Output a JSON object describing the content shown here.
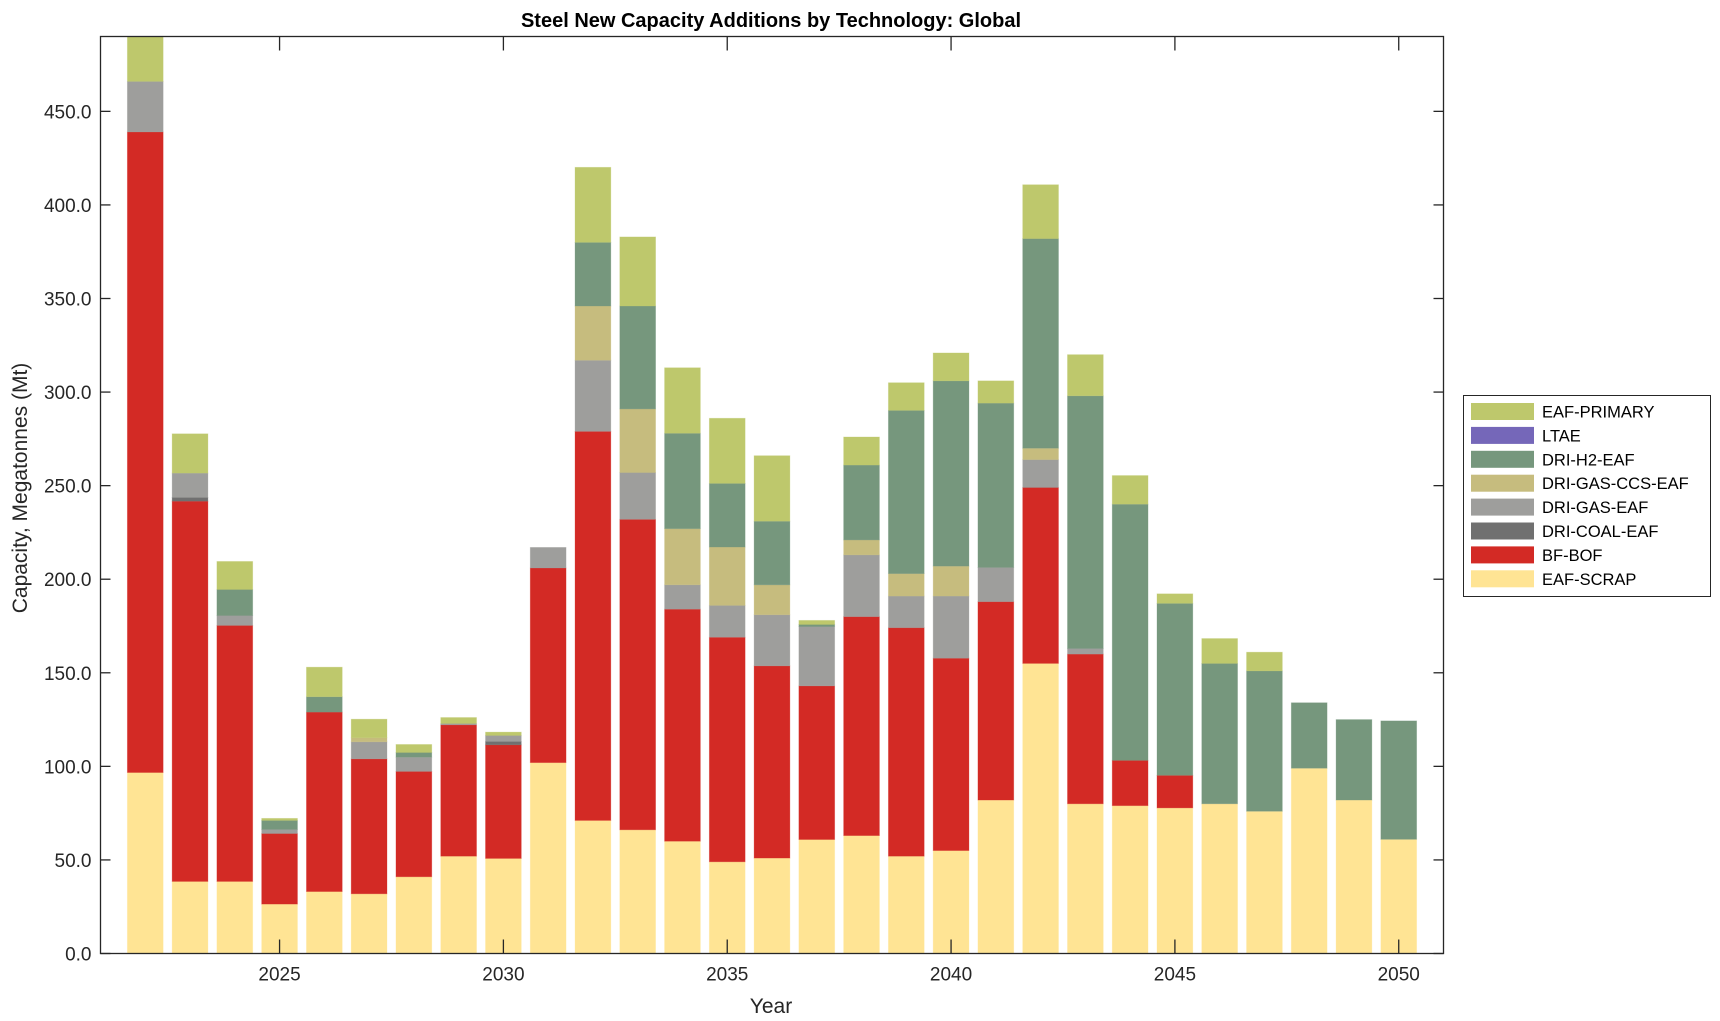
{
  "chart_data": {
    "type": "bar",
    "stacked": true,
    "title": "Steel New Capacity Additions by Technology: Global",
    "xlabel": "Year",
    "ylabel": "Capacity, Megatonnes (Mt)",
    "xlim": [
      2021,
      2051
    ],
    "ylim": [
      0,
      490
    ],
    "xticks": [
      2025,
      2030,
      2035,
      2040,
      2045,
      2050
    ],
    "xtick_labels": [
      "2025",
      "2030",
      "2035",
      "2040",
      "2045",
      "2050"
    ],
    "yticks": [
      0,
      50,
      100,
      150,
      200,
      250,
      300,
      350,
      400,
      450
    ],
    "ytick_labels": [
      "0.0",
      "50.0",
      "100.0",
      "150.0",
      "200.0",
      "250.0",
      "300.0",
      "350.0",
      "400.0",
      "450.0"
    ],
    "grid": false,
    "legend_position": "right",
    "categories": [
      2022,
      2023,
      2024,
      2025,
      2026,
      2027,
      2028,
      2029,
      2030,
      2031,
      2032,
      2033,
      2034,
      2035,
      2036,
      2037,
      2038,
      2039,
      2040,
      2041,
      2042,
      2043,
      2044,
      2045,
      2046,
      2047,
      2048,
      2049,
      2050
    ],
    "series": [
      {
        "name": "EAF-SCRAP",
        "color": "#FFE494",
        "values": [
          96.7,
          38.5,
          38.5,
          26.4,
          33.1,
          31.9,
          41.0,
          52.0,
          50.8,
          102.0,
          71.1,
          66.1,
          60.0,
          49.0,
          51.0,
          60.9,
          63.0,
          52.0,
          55.0,
          82.0,
          155.0,
          80.0,
          79.0,
          77.8,
          80.0,
          76.0,
          99.0,
          82.0,
          61.0
        ]
      },
      {
        "name": "BF-BOF",
        "color": "#D32A25",
        "values": [
          342.3,
          203.2,
          136.8,
          37.7,
          95.9,
          72.1,
          56.3,
          70.2,
          60.7,
          104.0,
          207.9,
          165.9,
          124.0,
          120.0,
          102.7,
          82.1,
          117.0,
          122.1,
          102.8,
          106.0,
          94.0,
          80.0,
          24.2,
          17.4,
          0,
          0,
          0,
          0,
          0
        ]
      },
      {
        "name": "DRI-COAL-EAF",
        "color": "#707070",
        "values": [
          0,
          2.0,
          0,
          0,
          0,
          0,
          0,
          0,
          1.8,
          0,
          0,
          0,
          0,
          0,
          0,
          0,
          0,
          0,
          0,
          0,
          0,
          0,
          0,
          0,
          0,
          0,
          0,
          0,
          0
        ]
      },
      {
        "name": "DRI-GAS-EAF",
        "color": "#9E9E9C",
        "values": [
          27.0,
          13.0,
          5.3,
          2.2,
          0,
          9.1,
          7.6,
          0.7,
          3.2,
          11.0,
          38.0,
          25.0,
          13.0,
          17.0,
          27.3,
          31.7,
          33.0,
          16.9,
          33.2,
          18.3,
          14.9,
          3.0,
          0,
          0,
          0,
          0,
          0,
          0,
          0
        ]
      },
      {
        "name": "DRI-GAS-CCS-EAF",
        "color": "#C6BC7E",
        "values": [
          0,
          0,
          0,
          0,
          0,
          2.2,
          0,
          0,
          0,
          0,
          29.0,
          34.0,
          30.0,
          31.2,
          16.0,
          0,
          8.0,
          12.0,
          16.0,
          0,
          6.1,
          0,
          0,
          0,
          0,
          0,
          0,
          0,
          0
        ]
      },
      {
        "name": "DRI-H2-EAF",
        "color": "#76977D",
        "values": [
          0,
          0,
          13.9,
          4.8,
          8.2,
          0,
          2.5,
          0,
          0,
          0,
          34.0,
          55.0,
          51.0,
          34.0,
          34.0,
          1.1,
          40.0,
          87.2,
          99.0,
          87.8,
          112.0,
          135.0,
          136.9,
          91.9,
          75.0,
          75.0,
          35.0,
          43.0,
          63.3
        ]
      },
      {
        "name": "LTAE",
        "color": "#7567B9",
        "values": [
          0,
          0,
          0,
          0,
          0,
          0,
          0,
          0,
          0,
          0,
          0,
          0,
          0,
          0,
          0,
          0,
          0,
          0,
          0,
          0,
          0,
          0,
          0,
          0,
          0,
          0,
          0,
          0,
          0
        ]
      },
      {
        "name": "EAF-PRIMARY",
        "color": "#BEC86C",
        "values": [
          28.0,
          21.0,
          15.0,
          1.1,
          15.8,
          9.9,
          4.3,
          3.2,
          1.8,
          0,
          40.1,
          36.9,
          35.0,
          34.8,
          35.0,
          2.2,
          15.0,
          14.8,
          14.9,
          11.9,
          28.8,
          22.0,
          15.3,
          5.1,
          13.3,
          10.0,
          0,
          0,
          0
        ]
      }
    ],
    "legend_order": [
      "EAF-PRIMARY",
      "LTAE",
      "DRI-H2-EAF",
      "DRI-GAS-CCS-EAF",
      "DRI-GAS-EAF",
      "DRI-COAL-EAF",
      "BF-BOF",
      "EAF-SCRAP"
    ]
  }
}
